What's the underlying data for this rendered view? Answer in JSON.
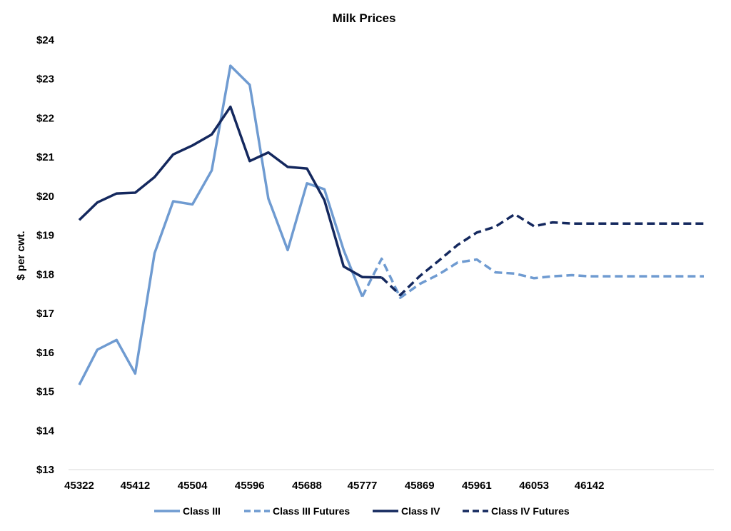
{
  "chart_data": {
    "type": "line",
    "title": "Milk Prices",
    "xlabel": "",
    "ylabel": "$ per cwt.",
    "ylim": [
      13,
      24
    ],
    "yticks": [
      13,
      14,
      15,
      16,
      17,
      18,
      19,
      20,
      21,
      22,
      23,
      24
    ],
    "ytick_labels": [
      "$13",
      "$14",
      "$15",
      "$16",
      "$17",
      "$18",
      "$19",
      "$20",
      "$21",
      "$22",
      "$23",
      "$24"
    ],
    "xlim": [
      45322,
      46326
    ],
    "xticks": [
      45322,
      45412,
      45504,
      45596,
      45688,
      45777,
      45869,
      45961,
      46053,
      46142
    ],
    "xtick_labels": [
      "45322",
      "45412",
      "45504",
      "45596",
      "45688",
      "45777",
      "45869",
      "45961",
      "46053",
      "46142"
    ],
    "grid": false,
    "legend_position": "bottom",
    "colors": {
      "light": "#6F9BD1",
      "dark": "#14285E"
    },
    "series": [
      {
        "name": "Class III",
        "style": "solid",
        "color": "#6F9BD1",
        "x": [
          45322,
          45351,
          45382,
          45412,
          45443,
          45473,
          45504,
          45535,
          45565,
          45596,
          45626,
          45657,
          45688,
          45716,
          45747,
          45777
        ],
        "values": [
          15.17,
          16.07,
          16.32,
          15.46,
          18.54,
          19.87,
          19.79,
          20.66,
          23.34,
          22.85,
          19.94,
          18.62,
          20.33,
          20.18,
          18.62,
          17.43
        ]
      },
      {
        "name": "Class III Futures",
        "style": "dashed",
        "color": "#6F9BD1",
        "x": [
          45777,
          45808,
          45838,
          45869,
          45900,
          45930,
          45961,
          45991,
          46022,
          46053,
          46083,
          46114,
          46142,
          46173,
          46203,
          46234,
          46265,
          46295,
          46326
        ],
        "values": [
          17.43,
          18.4,
          17.4,
          17.75,
          18.0,
          18.3,
          18.38,
          18.05,
          18.02,
          17.9,
          17.95,
          17.98,
          17.95,
          17.95,
          17.95,
          17.95,
          17.95,
          17.95,
          17.95
        ]
      },
      {
        "name": "Class IV",
        "style": "solid",
        "color": "#14285E",
        "x": [
          45322,
          45351,
          45382,
          45412,
          45443,
          45473,
          45504,
          45535,
          45565,
          45596,
          45626,
          45657,
          45688,
          45716,
          45747,
          45777,
          45808
        ],
        "values": [
          19.39,
          19.84,
          20.07,
          20.09,
          20.49,
          21.07,
          21.3,
          21.58,
          22.29,
          20.9,
          21.12,
          20.75,
          20.71,
          19.9,
          18.2,
          17.93,
          17.92
        ]
      },
      {
        "name": "Class IV Futures",
        "style": "dashed",
        "color": "#14285E",
        "x": [
          45808,
          45838,
          45869,
          45900,
          45930,
          45961,
          45991,
          46022,
          46053,
          46083,
          46114,
          46142,
          46173,
          46203,
          46234,
          46265,
          46295,
          46326
        ],
        "values": [
          17.92,
          17.47,
          17.95,
          18.35,
          18.75,
          19.07,
          19.22,
          19.54,
          19.23,
          19.33,
          19.3,
          19.3,
          19.3,
          19.3,
          19.3,
          19.3,
          19.3,
          19.3
        ]
      }
    ],
    "legend": [
      {
        "label": "Class III",
        "style": "solid",
        "color": "#6F9BD1"
      },
      {
        "label": "Class III Futures",
        "style": "dashed",
        "color": "#6F9BD1"
      },
      {
        "label": "Class IV",
        "style": "solid",
        "color": "#14285E"
      },
      {
        "label": "Class IV Futures",
        "style": "dashed",
        "color": "#14285E"
      }
    ]
  }
}
